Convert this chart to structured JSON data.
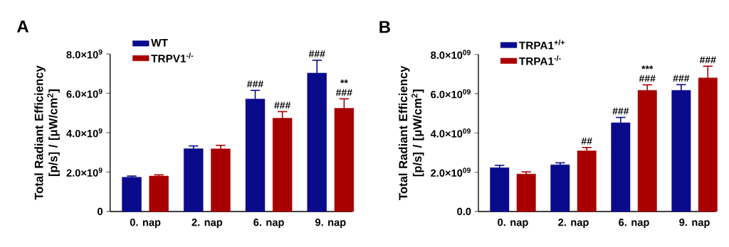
{
  "chart_data": [
    {
      "type": "bar",
      "title": "A",
      "ylabel": "Total Radiant Efficiency [p/s] / [μW/cm$^{2}$]",
      "categories": [
        "0. nap",
        "2. nap",
        "6. nap",
        "9. nap"
      ],
      "series": [
        {
          "name": "WT",
          "color": "#0a0a8c",
          "values": [
            1740000000,
            3190000000,
            5710000000,
            7030000000
          ],
          "errors": [
            60000000,
            140000000,
            440000000,
            650000000
          ]
        },
        {
          "name": "TRPV1$^{-/-}$",
          "color": "#a80000",
          "values": [
            1800000000,
            3180000000,
            4740000000,
            5240000000
          ],
          "errors": [
            60000000,
            180000000,
            330000000,
            480000000
          ]
        }
      ],
      "ylim": [
        0,
        8000000000
      ],
      "yticks": [
        {
          "value": 0,
          "label": "0"
        },
        {
          "value": 2000000000,
          "label": "2.0×10$^{9}$"
        },
        {
          "value": 4000000000,
          "label": "4.0×10$^{9}$"
        },
        {
          "value": 6000000000,
          "label": "6.0×10$^{9}$"
        },
        {
          "value": 8000000000,
          "label": "8.0×10$^{9}$"
        }
      ],
      "legend": "top left",
      "annotations": [
        "###",
        "###",
        "###",
        "###",
        "**"
      ]
    },
    {
      "type": "bar",
      "title": "B",
      "ylabel": "Total Radiant Efficiency [p/s] / [μW/cm$^{2}$]",
      "categories": [
        "0. nap",
        "2. nap",
        "6. nap",
        "9. nap"
      ],
      "series": [
        {
          "name": "TRPA1$^{+/+}$",
          "color": "#0a0a8c",
          "values": [
            2230000000,
            2380000000,
            4520000000,
            6170000000
          ],
          "errors": [
            120000000,
            100000000,
            270000000,
            290000000
          ]
        },
        {
          "name": "TRPA1$^{-/-}$",
          "color": "#a80000",
          "values": [
            1910000000,
            3090000000,
            6170000000,
            6800000000
          ],
          "errors": [
            110000000,
            170000000,
            280000000,
            600000000
          ]
        }
      ],
      "ylim": [
        0,
        8000000000
      ],
      "yticks": [
        {
          "value": 0,
          "label": "0.0"
        },
        {
          "value": 2000000000,
          "label": "2.0×10$^{09}$"
        },
        {
          "value": 4000000000,
          "label": "4.0×10$^{09}$"
        },
        {
          "value": 6000000000,
          "label": "6.0×10$^{09}$"
        },
        {
          "value": 8000000000,
          "label": "8.0×10$^{09}$"
        }
      ],
      "legend": "top left",
      "annotations": [
        "##",
        "###",
        "###",
        "***",
        "###",
        "###"
      ]
    }
  ]
}
